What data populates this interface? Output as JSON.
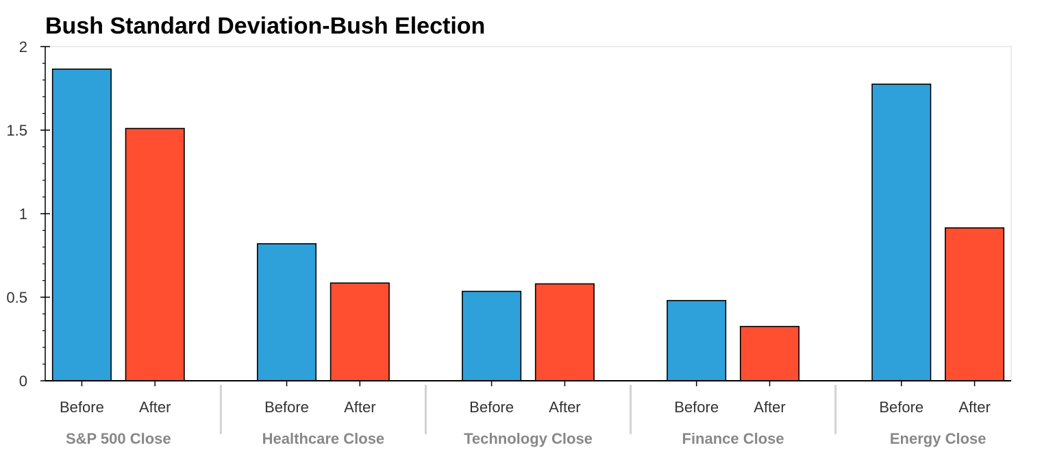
{
  "chart_data": {
    "type": "bar",
    "title": "Bush Standard Deviation-Bush Election",
    "xlabel": "",
    "ylabel": "",
    "ylim": [
      0,
      2
    ],
    "yticks": [
      "0",
      "0.5",
      "1",
      "1.5",
      "2"
    ],
    "categories": [
      "S&P 500 Close",
      "Healthcare Close",
      "Technology Close",
      "Finance Close",
      "Energy Close"
    ],
    "subcategories": [
      "Before",
      "After"
    ],
    "series": [
      {
        "name": "Before",
        "color": "#2FA1DA",
        "values": [
          1.865,
          0.82,
          0.535,
          0.48,
          1.775
        ]
      },
      {
        "name": "After",
        "color": "#FF4F30",
        "values": [
          1.51,
          0.585,
          0.58,
          0.325,
          0.915
        ]
      }
    ],
    "grid": false,
    "legend": "none"
  }
}
